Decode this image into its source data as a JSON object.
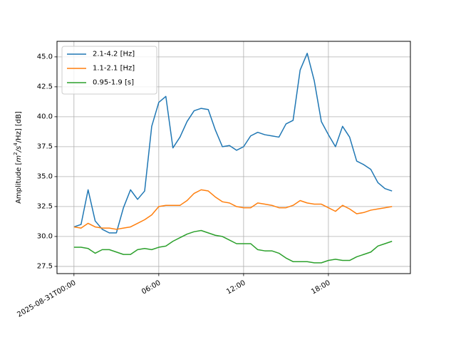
{
  "chart_data": {
    "type": "line",
    "title": "",
    "xlabel": "",
    "ylabel_prefix": "Amplitude [",
    "ylabel_unit_base": "m",
    "ylabel_unit_sup1": "2",
    "ylabel_unit_mid": "/s",
    "ylabel_unit_sup2": "4",
    "ylabel_unit_tail": "/Hz] [dB]",
    "x_start": "2025-08-31T00:00",
    "x_step_hours": 0.5,
    "xlim_hours": [
      -1.2,
      23.8
    ],
    "ylim": [
      26.9,
      46.3
    ],
    "x_ticks": [
      {
        "hours": 0,
        "label": "2025-08-31T00:00"
      },
      {
        "hours": 6,
        "label": "06:00"
      },
      {
        "hours": 12,
        "label": "12:00"
      },
      {
        "hours": 18,
        "label": "18:00"
      }
    ],
    "y_ticks": [
      {
        "value": 27.5,
        "label": "27.5"
      },
      {
        "value": 30.0,
        "label": "30.0"
      },
      {
        "value": 32.5,
        "label": "32.5"
      },
      {
        "value": 35.0,
        "label": "35.0"
      },
      {
        "value": 37.5,
        "label": "37.5"
      },
      {
        "value": 40.0,
        "label": "40.0"
      },
      {
        "value": 42.5,
        "label": "42.5"
      },
      {
        "value": 45.0,
        "label": "45.0"
      }
    ],
    "grid": true,
    "legend_position": "top-left",
    "series": [
      {
        "name": "2.1-4.2 [Hz]",
        "color": "#1f77b4",
        "values": [
          30.8,
          31.0,
          33.9,
          31.3,
          30.6,
          30.3,
          30.3,
          32.4,
          33.9,
          33.1,
          33.8,
          39.2,
          41.2,
          41.7,
          37.4,
          38.3,
          39.6,
          40.5,
          40.7,
          40.6,
          38.9,
          37.5,
          37.6,
          37.2,
          37.5,
          38.4,
          38.7,
          38.5,
          38.4,
          38.3,
          39.4,
          39.7,
          43.9,
          45.3,
          43.0,
          39.6,
          38.5,
          37.5,
          39.2,
          38.3,
          36.3,
          36.0,
          35.6,
          34.5,
          34.0,
          33.8
        ]
      },
      {
        "name": "1.1-2.1 [Hz]",
        "color": "#ff7f0e",
        "values": [
          30.8,
          30.7,
          31.1,
          30.8,
          30.7,
          30.7,
          30.6,
          30.7,
          30.8,
          31.1,
          31.4,
          31.8,
          32.5,
          32.6,
          32.6,
          32.6,
          33.0,
          33.6,
          33.9,
          33.8,
          33.3,
          32.9,
          32.8,
          32.5,
          32.4,
          32.4,
          32.8,
          32.7,
          32.6,
          32.4,
          32.4,
          32.6,
          33.0,
          32.8,
          32.7,
          32.7,
          32.4,
          32.1,
          32.6,
          32.3,
          31.9,
          32.0,
          32.2,
          32.3,
          32.4,
          32.5
        ]
      },
      {
        "name": "0.95-1.9 [s]",
        "color": "#2ca02c",
        "values": [
          29.1,
          29.1,
          29.0,
          28.6,
          28.9,
          28.9,
          28.7,
          28.5,
          28.5,
          28.9,
          29.0,
          28.9,
          29.1,
          29.2,
          29.6,
          29.9,
          30.2,
          30.4,
          30.5,
          30.3,
          30.1,
          30.0,
          29.7,
          29.4,
          29.4,
          29.4,
          28.9,
          28.8,
          28.8,
          28.6,
          28.2,
          27.9,
          27.9,
          27.9,
          27.8,
          27.8,
          28.0,
          28.1,
          28.0,
          28.0,
          28.3,
          28.5,
          28.7,
          29.2,
          29.4,
          29.6
        ]
      }
    ]
  }
}
